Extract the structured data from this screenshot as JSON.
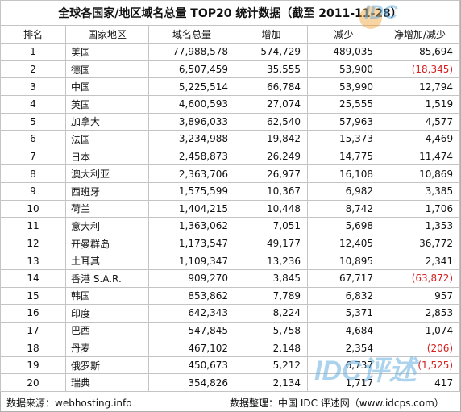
{
  "title": "全球各国家/地区域名总量 TOP20 统计数据（截至 2011-11-28）",
  "headers": [
    "排名",
    "国家地区",
    "域名总量",
    "增加",
    "减少",
    "净增加/减少"
  ],
  "rows": [
    {
      "rank": "1",
      "country": "美国",
      "total": "77,988,578",
      "increase": "574,729",
      "decrease": "489,035",
      "net": "85,694",
      "neg": false
    },
    {
      "rank": "2",
      "country": "德国",
      "total": "6,507,459",
      "increase": "35,555",
      "decrease": "53,900",
      "net": "(18,345)",
      "neg": true
    },
    {
      "rank": "3",
      "country": "中国",
      "total": "5,225,514",
      "increase": "66,784",
      "decrease": "53,990",
      "net": "12,794",
      "neg": false
    },
    {
      "rank": "4",
      "country": "英国",
      "total": "4,600,593",
      "increase": "27,074",
      "decrease": "25,555",
      "net": "1,519",
      "neg": false
    },
    {
      "rank": "5",
      "country": "加拿大",
      "total": "3,896,033",
      "increase": "62,540",
      "decrease": "57,963",
      "net": "4,577",
      "neg": false
    },
    {
      "rank": "6",
      "country": "法国",
      "total": "3,234,988",
      "increase": "19,842",
      "decrease": "15,373",
      "net": "4,469",
      "neg": false
    },
    {
      "rank": "7",
      "country": "日本",
      "total": "2,458,873",
      "increase": "26,249",
      "decrease": "14,775",
      "net": "11,474",
      "neg": false
    },
    {
      "rank": "8",
      "country": "澳大利亚",
      "total": "2,363,706",
      "increase": "26,977",
      "decrease": "16,108",
      "net": "10,869",
      "neg": false
    },
    {
      "rank": "9",
      "country": "西班牙",
      "total": "1,575,599",
      "increase": "10,367",
      "decrease": "6,982",
      "net": "3,385",
      "neg": false
    },
    {
      "rank": "10",
      "country": "荷兰",
      "total": "1,404,215",
      "increase": "10,448",
      "decrease": "8,742",
      "net": "1,706",
      "neg": false
    },
    {
      "rank": "11",
      "country": "意大利",
      "total": "1,363,062",
      "increase": "7,051",
      "decrease": "5,698",
      "net": "1,353",
      "neg": false
    },
    {
      "rank": "12",
      "country": "开曼群岛",
      "total": "1,173,547",
      "increase": "49,177",
      "decrease": "12,405",
      "net": "36,772",
      "neg": false
    },
    {
      "rank": "13",
      "country": "土耳其",
      "total": "1,109,347",
      "increase": "13,236",
      "decrease": "10,895",
      "net": "2,341",
      "neg": false
    },
    {
      "rank": "14",
      "country": "香港 S.A.R.",
      "total": "909,270",
      "increase": "3,845",
      "decrease": "67,717",
      "net": "(63,872)",
      "neg": true
    },
    {
      "rank": "15",
      "country": "韩国",
      "total": "853,862",
      "increase": "7,789",
      "decrease": "6,832",
      "net": "957",
      "neg": false
    },
    {
      "rank": "16",
      "country": "印度",
      "total": "642,343",
      "increase": "8,224",
      "decrease": "5,371",
      "net": "2,853",
      "neg": false
    },
    {
      "rank": "17",
      "country": "巴西",
      "total": "547,845",
      "increase": "5,758",
      "decrease": "4,684",
      "net": "1,074",
      "neg": false
    },
    {
      "rank": "18",
      "country": "丹麦",
      "total": "467,102",
      "increase": "2,148",
      "decrease": "2,354",
      "net": "(206)",
      "neg": true
    },
    {
      "rank": "19",
      "country": "俄罗斯",
      "total": "450,673",
      "increase": "5,212",
      "decrease": "6,737",
      "net": "(1,525)",
      "neg": true
    },
    {
      "rank": "20",
      "country": "瑞典",
      "total": "354,826",
      "increase": "2,134",
      "decrease": "1,717",
      "net": "417",
      "neg": false
    }
  ],
  "footer": {
    "source": "数据来源：webhosting.info",
    "organizer": "数据整理：中国 IDC 评述网（www.idcps.com）"
  },
  "watermark": {
    "top": "IDC",
    "bottom": "IDC评述"
  },
  "colors": {
    "negative": "#d62020",
    "border": "#c4c4c4",
    "watermark": "#6ab0e0"
  }
}
